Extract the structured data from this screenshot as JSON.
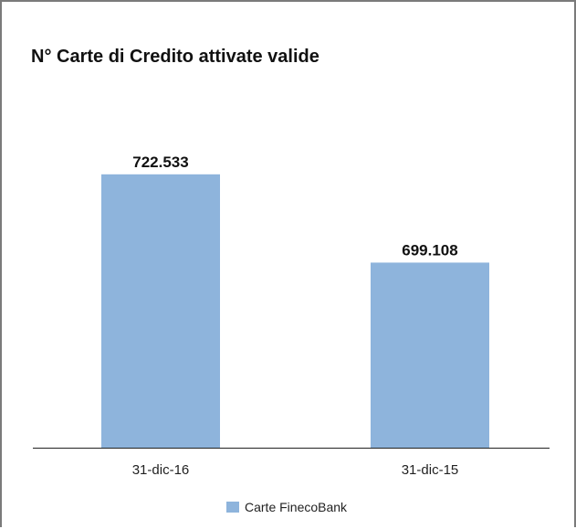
{
  "colors": {
    "bar": "#8eb4dc",
    "axis": "#222222",
    "label_text": "#111111",
    "frame_border": "#7a7a7a"
  },
  "chart_data": {
    "type": "bar",
    "title": "N° Carte di Credito attivate valide",
    "categories": [
      "31-dic-16",
      "31-dic-15"
    ],
    "series": [
      {
        "name": "Carte FinecoBank",
        "values": [
          722533,
          699108
        ],
        "value_labels": [
          "722.533",
          "699.108"
        ]
      }
    ],
    "xlabel": "",
    "ylabel": "",
    "ylim": [
      650000,
      730000
    ],
    "y_axis_visible": false,
    "grid": false,
    "legend_position": "bottom"
  }
}
